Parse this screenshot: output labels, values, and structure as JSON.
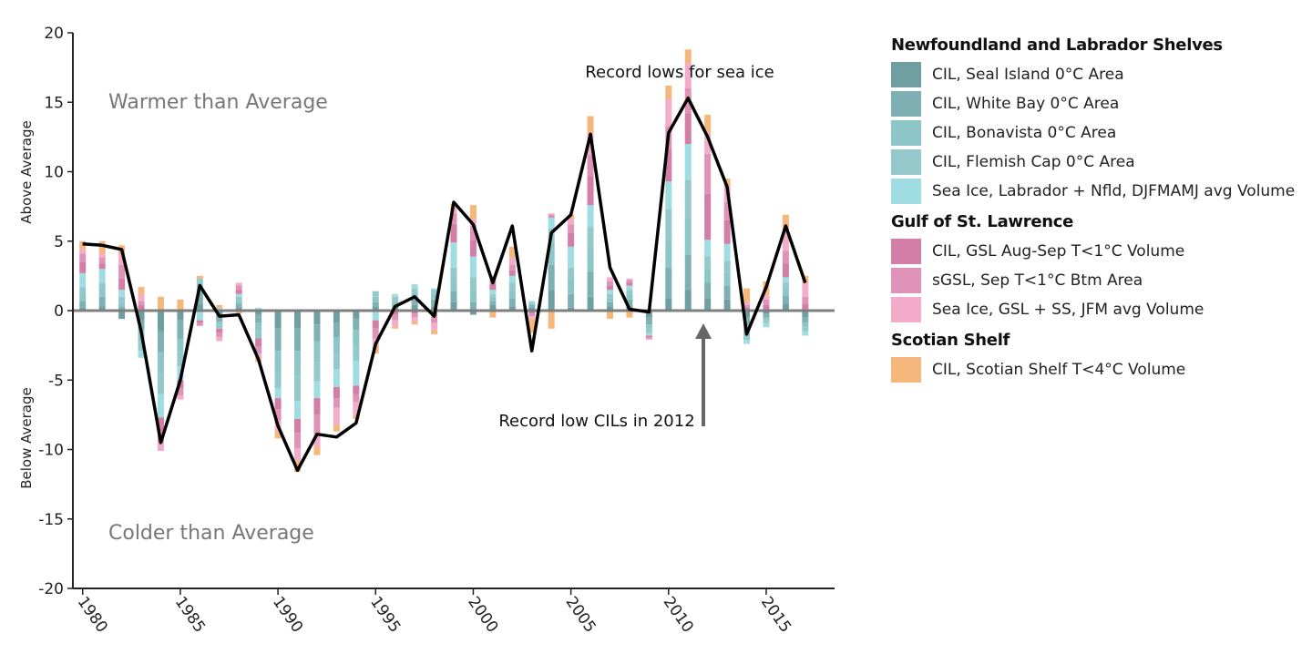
{
  "chart_data": {
    "type": "bar",
    "subtype": "stacked bar with line overlay",
    "title": "",
    "xlabel": "",
    "ylabel_top": "Above Average",
    "ylabel_bottom": "Below Average",
    "ylim": [
      -20,
      20
    ],
    "yticks": [
      20,
      15,
      10,
      5,
      0,
      -5,
      -10,
      -15,
      -20
    ],
    "xlim": [
      1979.5,
      2018.5
    ],
    "xticks": [
      1980,
      1985,
      1990,
      1995,
      2000,
      2005,
      2010,
      2015
    ],
    "region_labels": {
      "warmer": "Warmer than Average",
      "colder": "Colder than Average"
    },
    "annotations": {
      "sea_ice": "Record lows for sea ice",
      "cil": "Record low CILs in 2012"
    },
    "years": [
      1980,
      1981,
      1982,
      1983,
      1984,
      1985,
      1986,
      1987,
      1988,
      1989,
      1990,
      1991,
      1992,
      1993,
      1994,
      1995,
      1996,
      1997,
      1998,
      1999,
      2000,
      2001,
      2002,
      2003,
      2004,
      2005,
      2006,
      2007,
      2008,
      2009,
      2010,
      2011,
      2012,
      2013,
      2014,
      2015,
      2016,
      2017
    ],
    "composite_index": [
      4.8,
      4.7,
      4.4,
      -1.5,
      -9.5,
      -5.0,
      1.8,
      -0.4,
      -0.3,
      -3.5,
      -8.3,
      -11.5,
      -8.9,
      -9.1,
      -8.1,
      -2.4,
      0.3,
      1.0,
      -0.4,
      7.8,
      6.2,
      2.0,
      6.1,
      -2.9,
      5.6,
      6.9,
      12.7,
      3.1,
      0.1,
      -0.1,
      12.8,
      15.3,
      12.5,
      8.9,
      -1.7,
      1.7,
      6.1,
      2.0
    ],
    "groups": [
      {
        "heading": "Newfoundland and Labrador Shelves",
        "series": [
          0,
          1,
          2,
          3,
          4
        ]
      },
      {
        "heading": "Gulf of St. Lawrence",
        "series": [
          5,
          6,
          7
        ]
      },
      {
        "heading": "Scotian Shelf",
        "series": [
          8
        ]
      }
    ],
    "series": [
      {
        "name": "CIL, Seal Island 0°C Area",
        "color": "#6f9fa1",
        "values": [
          0.2,
          0.3,
          -0.6,
          -0.7,
          -1.5,
          -0.7,
          0.5,
          -0.5,
          0.2,
          -0.3,
          -1.3,
          -1.3,
          -1.0,
          -0.9,
          -0.6,
          0.3,
          0.2,
          0.4,
          0.3,
          0.6,
          -0.3,
          0.4,
          0.3,
          0.2,
          1.5,
          0.2,
          1.0,
          0.3,
          0.3,
          -0.5,
          0.9,
          1.5,
          0.9,
          0.8,
          -0.5,
          -0.2,
          0.5,
          -0.5
        ]
      },
      {
        "name": "CIL, White Bay 0°C Area",
        "color": "#7eb0b4",
        "values": [
          0.5,
          0.7,
          0.3,
          -0.7,
          -1.5,
          -1.3,
          0.8,
          -0.3,
          0.3,
          -0.6,
          -1.6,
          -1.6,
          -1.2,
          -1.0,
          -0.8,
          0.3,
          0.2,
          0.4,
          0.5,
          0.8,
          0.6,
          0.3,
          0.6,
          0.2,
          1.8,
          1.0,
          1.8,
          0.3,
          0.5,
          -0.5,
          2.2,
          2.5,
          1.1,
          1.0,
          -0.6,
          -0.3,
          0.6,
          -0.4
        ]
      },
      {
        "name": "CIL, Bonavista 0°C Area",
        "color": "#8cc6c9",
        "values": [
          0.6,
          0.6,
          0.3,
          -0.8,
          -1.6,
          -1.0,
          0.5,
          -0.2,
          0.2,
          -0.6,
          -1.6,
          -1.8,
          -1.5,
          -1.2,
          -1.1,
          0.4,
          0.3,
          0.5,
          0.4,
          1.0,
          1.0,
          0.3,
          0.6,
          0.1,
          1.6,
          1.2,
          1.7,
          0.3,
          0.4,
          -0.3,
          2.0,
          2.7,
          1.0,
          1.0,
          -0.5,
          -0.2,
          0.5,
          -0.3
        ]
      },
      {
        "name": "CIL, Flemish Cap 0°C Area",
        "color": "#95c8cb",
        "values": [
          0.4,
          0.4,
          0.4,
          -0.7,
          -1.4,
          -1.0,
          0.5,
          -0.3,
          0.3,
          -0.5,
          -1.1,
          -1.8,
          -1.4,
          -1.1,
          -1.1,
          0.4,
          0.3,
          0.3,
          0.3,
          0.7,
          0.8,
          0.2,
          0.5,
          0.1,
          1.0,
          0.7,
          1.5,
          0.3,
          0.3,
          -0.3,
          2.2,
          2.7,
          0.9,
          0.8,
          -0.5,
          -0.2,
          0.4,
          -0.3
        ]
      },
      {
        "name": "Sea Ice, Labrador + Nfld, DJFMAMJ avg Volume",
        "color": "#9fdde2",
        "values": [
          1.0,
          1.0,
          0.5,
          -0.5,
          -1.7,
          -1.0,
          -0.7,
          0.2,
          0.2,
          0.2,
          -0.7,
          -1.3,
          -1.2,
          -1.3,
          -1.8,
          -0.7,
          0.2,
          0.3,
          0.1,
          1.8,
          1.5,
          0.3,
          0.5,
          0.1,
          0.8,
          1.5,
          1.6,
          0.3,
          0.3,
          -0.2,
          2.0,
          2.6,
          1.2,
          1.2,
          -0.3,
          -0.3,
          0.4,
          -0.3
        ]
      },
      {
        "name": "CIL, GSL Aug-Sep T<1°C Volume",
        "color": "#d27ea6",
        "values": [
          0.8,
          0.4,
          0.8,
          0.4,
          -1.0,
          -0.6,
          -0.2,
          -0.3,
          0.3,
          -0.6,
          -0.8,
          -1.0,
          -1.2,
          -0.8,
          -0.6,
          -0.6,
          -0.3,
          -0.2,
          -0.4,
          1.3,
          1.2,
          0.4,
          0.4,
          -0.2,
          0.1,
          1.0,
          2.1,
          0.3,
          0.2,
          -0.1,
          2.3,
          2.2,
          3.3,
          1.7,
          0.2,
          0.4,
          1.0,
          0.5
        ]
      },
      {
        "name": "sGSL, Sep T<1°C Btm Area",
        "color": "#e093b9",
        "values": [
          0.6,
          0.4,
          1.0,
          0.3,
          -0.8,
          -0.5,
          -0.2,
          -0.3,
          0.3,
          -0.5,
          -0.8,
          -1.1,
          -1.4,
          -0.7,
          -0.6,
          -0.7,
          -0.4,
          -0.3,
          -0.5,
          0.8,
          1.0,
          0.3,
          0.4,
          -0.2,
          0.1,
          0.6,
          1.5,
          0.3,
          0.2,
          -0.1,
          1.7,
          1.8,
          2.9,
          1.3,
          0.2,
          0.4,
          0.9,
          0.5
        ]
      },
      {
        "name": "Sea Ice, GSL + SS, JFM avg Volume",
        "color": "#f3adca",
        "values": [
          0.3,
          0.3,
          0.8,
          0.5,
          -0.6,
          -0.3,
          0.0,
          -0.3,
          0.2,
          -0.3,
          -0.8,
          -0.9,
          -0.9,
          -1.2,
          -0.9,
          -0.5,
          -0.4,
          -0.3,
          -0.5,
          0.4,
          0.5,
          0.3,
          0.5,
          -0.2,
          0.1,
          0.4,
          1.6,
          0.3,
          0.1,
          -0.1,
          1.9,
          1.8,
          1.5,
          1.1,
          0.2,
          0.3,
          1.6,
          1.0
        ]
      },
      {
        "name": "CIL, Scotian Shelf T<4°C Volume",
        "color": "#f5b77b",
        "values": [
          0.6,
          0.9,
          0.6,
          0.5,
          1.0,
          0.8,
          0.2,
          0.2,
          -0.2,
          -0.3,
          -0.5,
          -0.8,
          -0.6,
          -0.5,
          -0.3,
          -0.6,
          -0.2,
          -0.2,
          -0.3,
          0.3,
          1.0,
          -0.5,
          0.8,
          -1.0,
          -1.3,
          0.3,
          1.2,
          -0.6,
          -0.5,
          0.1,
          1.0,
          1.0,
          1.3,
          0.6,
          1.0,
          1.0,
          1.0,
          0.5
        ]
      }
    ]
  }
}
